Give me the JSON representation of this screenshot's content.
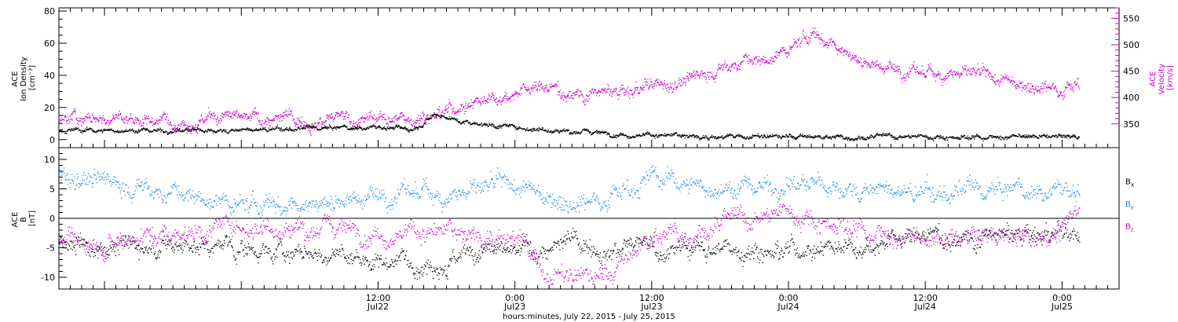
{
  "figure": {
    "xlabel": "hours:minutes, July 22, 2015 - July 25, 2015",
    "x_range": [
      "2015-07-21 08:00",
      "2015-07-25 05:00"
    ],
    "x_ticks": [
      {
        "time": "2015-07-22 12:00",
        "line1": "12:00",
        "line2": "Jul22"
      },
      {
        "time": "2015-07-23 00:00",
        "line1": "0:00",
        "line2": "Jul23"
      },
      {
        "time": "2015-07-23 12:00",
        "line1": "12:00",
        "line2": "Jul23"
      },
      {
        "time": "2015-07-24 00:00",
        "line1": "0:00",
        "line2": "Jul24"
      },
      {
        "time": "2015-07-24 12:00",
        "line1": "12:00",
        "line2": "Jul24"
      },
      {
        "time": "2015-07-25 00:00",
        "line1": "0:00",
        "line2": "Jul25"
      }
    ],
    "colors": {
      "black": "#000000",
      "magenta": "#cc00cc",
      "blue": "#1a8ae6"
    }
  },
  "chart_data": [
    {
      "type": "scatter",
      "panel": "top",
      "ylabel_left": [
        "ACE",
        "Ion Density",
        "[cm⁻³]"
      ],
      "ylabel_right": [
        "ACE",
        "Velocity",
        "[km/s]"
      ],
      "ylim_left": [
        -5,
        82
      ],
      "ylim_right": [
        305,
        570
      ],
      "y_ticks_left": [
        "0",
        "20",
        "40",
        "60",
        "80"
      ],
      "y_ticks_right": [
        "350",
        "400",
        "450",
        "500",
        "550"
      ],
      "series": [
        {
          "axis": "left",
          "color": "#000000",
          "points": [
            [
              "2015-07-21 08:00",
              6
            ],
            [
              "2015-07-22 00:00",
              6
            ],
            [
              "2015-07-22 12:00",
              8
            ],
            [
              "2015-07-22 15:00",
              7
            ],
            [
              "2015-07-22 17:00",
              17
            ],
            [
              "2015-07-22 19:00",
              12
            ],
            [
              "2015-07-23 00:00",
              8
            ],
            [
              "2015-07-23 06:00",
              5
            ],
            [
              "2015-07-23 12:00",
              3
            ],
            [
              "2015-07-23 18:00",
              2
            ],
            [
              "2015-07-24 00:00",
              2
            ],
            [
              "2015-07-24 12:00",
              2
            ],
            [
              "2015-07-25 00:00",
              2
            ],
            [
              "2015-07-25 01:30",
              2
            ]
          ]
        },
        {
          "axis": "right",
          "color": "#cc00cc",
          "points": [
            [
              "2015-07-21 08:00",
              360
            ],
            [
              "2015-07-22 06:00",
              360
            ],
            [
              "2015-07-22 15:00",
              362
            ],
            [
              "2015-07-22 18:00",
              378
            ],
            [
              "2015-07-22 22:00",
              405
            ],
            [
              "2015-07-23 02:00",
              420
            ],
            [
              "2015-07-23 06:00",
              408
            ],
            [
              "2015-07-23 10:00",
              410
            ],
            [
              "2015-07-23 14:00",
              430
            ],
            [
              "2015-07-23 18:00",
              455
            ],
            [
              "2015-07-23 20:00",
              470
            ],
            [
              "2015-07-23 22:00",
              470
            ],
            [
              "2015-07-24 00:00",
              490
            ],
            [
              "2015-07-24 02:00",
              520
            ],
            [
              "2015-07-24 04:00",
              505
            ],
            [
              "2015-07-24 06:00",
              475
            ],
            [
              "2015-07-24 08:00",
              462
            ],
            [
              "2015-07-24 10:00",
              452
            ],
            [
              "2015-07-24 12:00",
              445
            ],
            [
              "2015-07-24 14:00",
              450
            ],
            [
              "2015-07-24 16:00",
              445
            ],
            [
              "2015-07-24 18:00",
              432
            ],
            [
              "2015-07-24 20:00",
              430
            ],
            [
              "2015-07-25 00:00",
              420
            ],
            [
              "2015-07-25 01:30",
              430
            ]
          ]
        }
      ]
    },
    {
      "type": "scatter",
      "panel": "bottom",
      "ylabel_left": [
        "ACE",
        "B",
        "[nT]"
      ],
      "ylim": [
        -12,
        12
      ],
      "y_ticks": [
        "-10",
        "-5",
        "0",
        "5",
        "10"
      ],
      "series": [
        {
          "name": "Bx",
          "color": "#000000",
          "points": [
            [
              "2015-07-21 08:00",
              -4
            ],
            [
              "2015-07-22 00:00",
              -5
            ],
            [
              "2015-07-22 12:00",
              -7
            ],
            [
              "2015-07-23 00:00",
              -6
            ],
            [
              "2015-07-23 06:00",
              -4
            ],
            [
              "2015-07-23 12:00",
              -5
            ],
            [
              "2015-07-23 18:00",
              -5
            ],
            [
              "2015-07-24 00:00",
              -5
            ],
            [
              "2015-07-24 12:00",
              -3
            ],
            [
              "2015-07-25 00:00",
              -3
            ],
            [
              "2015-07-25 01:30",
              -4
            ]
          ]
        },
        {
          "name": "By",
          "color": "#1a8ae6",
          "points": [
            [
              "2015-07-21 08:00",
              8
            ],
            [
              "2015-07-22 00:00",
              2
            ],
            [
              "2015-07-22 12:00",
              4
            ],
            [
              "2015-07-23 00:00",
              5
            ],
            [
              "2015-07-23 06:00",
              3
            ],
            [
              "2015-07-23 12:00",
              7
            ],
            [
              "2015-07-23 18:00",
              5
            ],
            [
              "2015-07-24 00:00",
              6
            ],
            [
              "2015-07-24 12:00",
              4
            ],
            [
              "2015-07-25 00:00",
              5
            ],
            [
              "2015-07-25 01:30",
              5
            ]
          ]
        },
        {
          "name": "Bz",
          "color": "#cc00cc",
          "points": [
            [
              "2015-07-21 08:00",
              -4
            ],
            [
              "2015-07-22 00:00",
              -1
            ],
            [
              "2015-07-22 12:00",
              -2
            ],
            [
              "2015-07-23 00:00",
              -3
            ],
            [
              "2015-07-23 03:00",
              -10
            ],
            [
              "2015-07-23 08:00",
              -10
            ],
            [
              "2015-07-23 12:00",
              -3
            ],
            [
              "2015-07-23 18:00",
              -1
            ],
            [
              "2015-07-24 00:00",
              1
            ],
            [
              "2015-07-24 12:00",
              -4
            ],
            [
              "2015-07-25 00:00",
              -2
            ],
            [
              "2015-07-25 01:30",
              2
            ]
          ]
        }
      ],
      "legend": [
        {
          "main": "B",
          "sub": "x",
          "color": "#000000"
        },
        {
          "main": "B",
          "sub": "y",
          "color": "#1a8ae6"
        },
        {
          "main": "B",
          "sub": "z",
          "color": "#cc00cc"
        }
      ]
    }
  ]
}
